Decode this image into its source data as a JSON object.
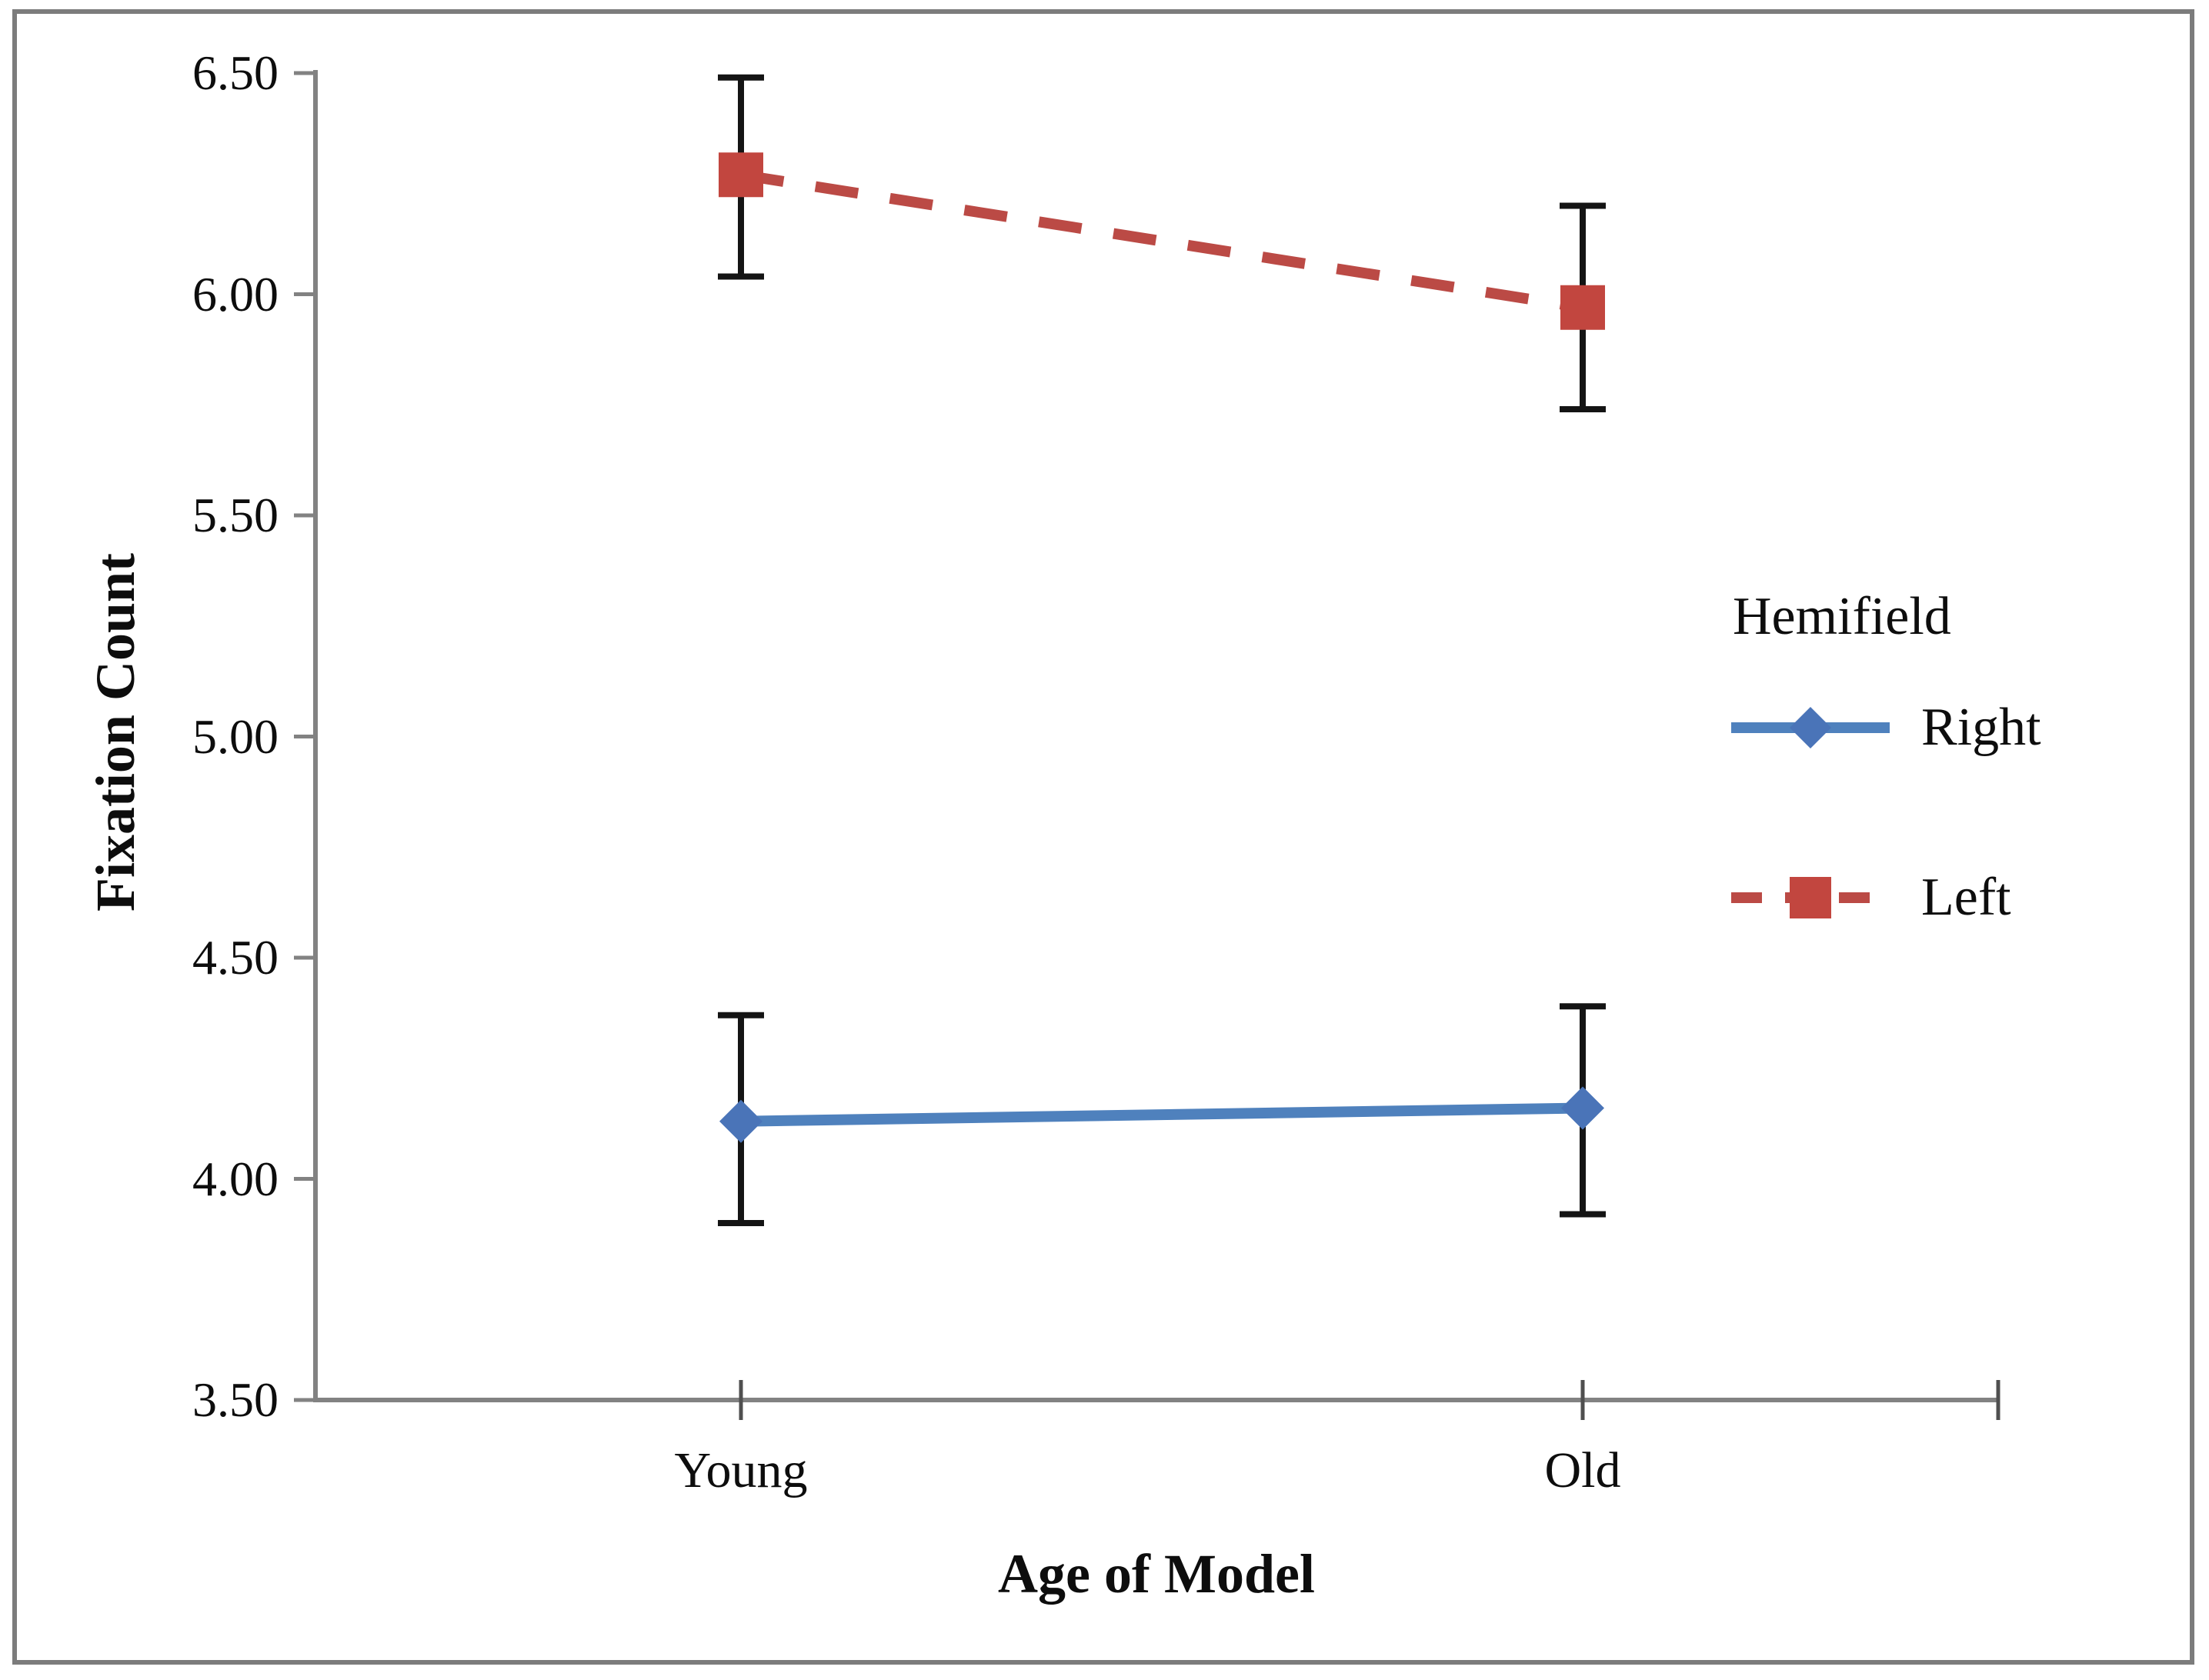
{
  "chart_data": {
    "type": "line",
    "title": "",
    "categories": [
      "Young",
      "Old"
    ],
    "series": [
      {
        "name": "Right",
        "style": "solid",
        "marker": "diamond",
        "color": "#4f81bd",
        "marker_color": "#4a74b8",
        "values": [
          4.13,
          4.16
        ],
        "error_upper": [
          4.37,
          4.39
        ],
        "error_lower": [
          3.9,
          3.92
        ]
      },
      {
        "name": "Left",
        "style": "dashed",
        "marker": "square",
        "color": "#bb4a45",
        "marker_color": "#c2463f",
        "values": [
          6.27,
          5.97
        ],
        "error_upper": [
          6.49,
          6.2
        ],
        "error_lower": [
          6.04,
          5.74
        ]
      }
    ],
    "xlabel": "Age of Model",
    "ylabel": "Fixation Count",
    "ylim": [
      3.5,
      6.5
    ],
    "y_tick_step": 0.5,
    "y_tick_labels": [
      "6.50",
      "6.00",
      "5.50",
      "5.00",
      "4.50",
      "4.00",
      "3.50"
    ],
    "legend": {
      "title": "Hemifield",
      "position": "right"
    },
    "grid": false,
    "error_bars": true,
    "error_bar_color": "#141414",
    "axis_color": "#828282",
    "tick_color": "#4f4f4f",
    "border_color": "#7c7c7c"
  }
}
